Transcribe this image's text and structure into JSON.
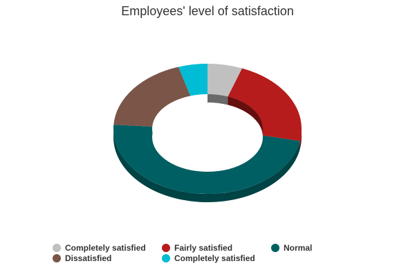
{
  "chart_data": {
    "type": "pie",
    "variant": "donut-3d",
    "title": "Employees' level of satisfaction",
    "categories": [
      "Completely satisfied",
      "Fairly satisfied",
      "Normal",
      "Dissatisfied",
      "Completely satisfied"
    ],
    "values": [
      6,
      22,
      48,
      19,
      5
    ],
    "unit": "%",
    "colors": [
      "#c0c0c0",
      "#b71c1c",
      "#005f63",
      "#7a5548",
      "#00bcd4"
    ],
    "legend": {
      "position": "bottom",
      "columns": 3
    }
  }
}
